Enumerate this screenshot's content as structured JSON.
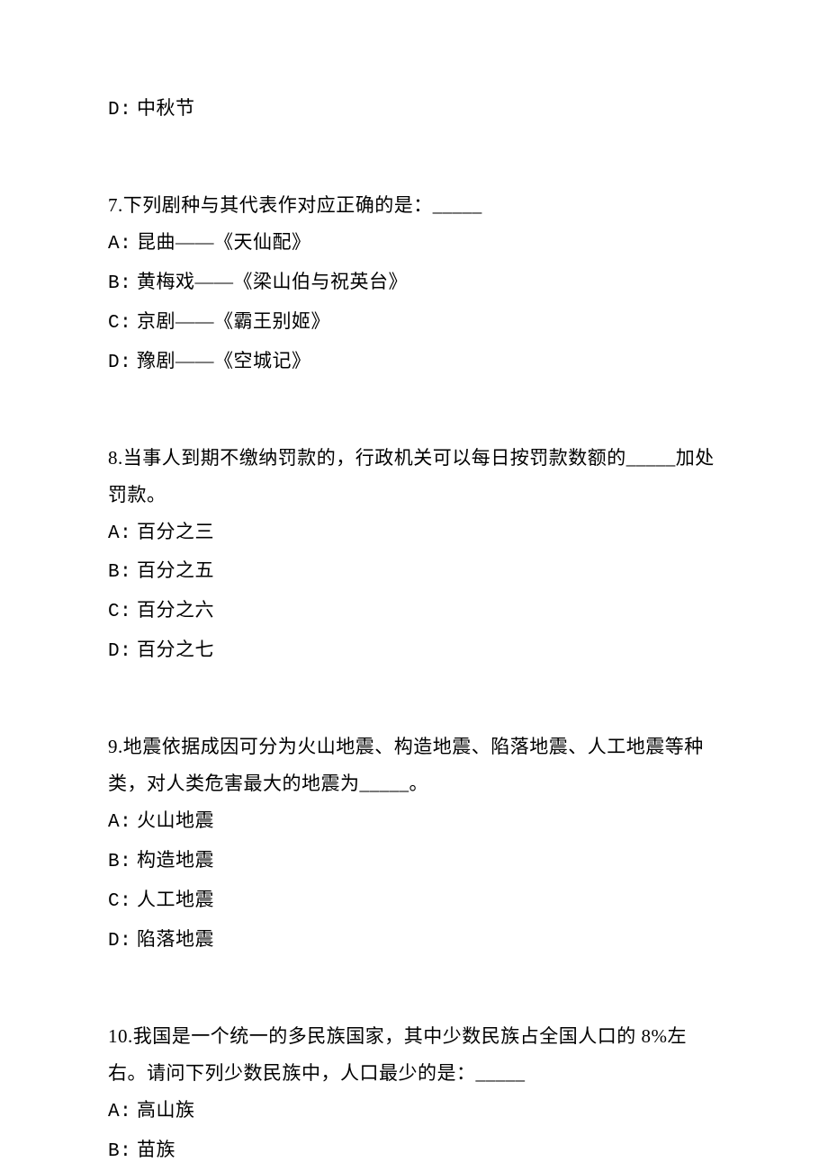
{
  "blocks": [
    {
      "lines": [
        {
          "type": "option",
          "label": "D:",
          "text": " 中秋节"
        }
      ]
    },
    {
      "lines": [
        {
          "type": "question",
          "text": "7.下列剧种与其代表作对应正确的是：_____"
        },
        {
          "type": "option",
          "label": "A:",
          "text": " 昆曲——《天仙配》"
        },
        {
          "type": "option",
          "label": "B:",
          "text": " 黄梅戏——《梁山伯与祝英台》"
        },
        {
          "type": "option",
          "label": "C:",
          "text": " 京剧——《霸王别姬》"
        },
        {
          "type": "option",
          "label": "D:",
          "text": " 豫剧——《空城记》"
        }
      ]
    },
    {
      "lines": [
        {
          "type": "question",
          "text": "8.当事人到期不缴纳罚款的，行政机关可以每日按罚款数额的_____加处罚款。"
        },
        {
          "type": "option",
          "label": "A:",
          "text": " 百分之三"
        },
        {
          "type": "option",
          "label": "B:",
          "text": " 百分之五"
        },
        {
          "type": "option",
          "label": "C:",
          "text": " 百分之六"
        },
        {
          "type": "option",
          "label": "D:",
          "text": " 百分之七"
        }
      ]
    },
    {
      "lines": [
        {
          "type": "question",
          "text": "9.地震依据成因可分为火山地震、构造地震、陷落地震、人工地震等种类，对人类危害最大的地震为_____。"
        },
        {
          "type": "option",
          "label": "A:",
          "text": " 火山地震"
        },
        {
          "type": "option",
          "label": "B:",
          "text": " 构造地震"
        },
        {
          "type": "option",
          "label": "C:",
          "text": " 人工地震"
        },
        {
          "type": "option",
          "label": "D:",
          "text": " 陷落地震"
        }
      ]
    },
    {
      "lines": [
        {
          "type": "question",
          "text": "10.我国是一个统一的多民族国家，其中少数民族占全国人口的 8%左右。请问下列少数民族中，人口最少的是：_____"
        },
        {
          "type": "option",
          "label": "A:",
          "text": " 高山族"
        },
        {
          "type": "option",
          "label": "B:",
          "text": " 苗族"
        }
      ]
    }
  ]
}
